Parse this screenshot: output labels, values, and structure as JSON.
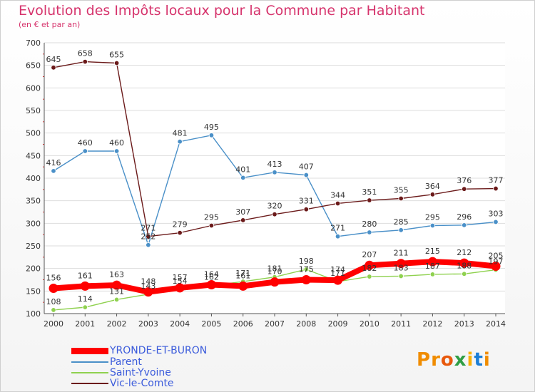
{
  "chart_data": {
    "type": "line",
    "title": "Evolution des Impôts locaux pour la Commune par Habitant",
    "subtitle": "(en € et par an)",
    "xlabel": "",
    "ylabel": "",
    "x": [
      "2000",
      "2001",
      "2002",
      "2003",
      "2004",
      "2005",
      "2006",
      "2007",
      "2008",
      "2009",
      "2010",
      "2011",
      "2012",
      "2013",
      "2014"
    ],
    "ylim": [
      100,
      700
    ],
    "yticks": [
      "100",
      "150",
      "200",
      "250",
      "300",
      "350",
      "400",
      "450",
      "500",
      "550",
      "600",
      "650",
      "700"
    ],
    "grid": "horizontal",
    "legend_placement": "bottom-left",
    "series": [
      {
        "name": "YRONDE-ET-BURON",
        "color": "#ff0000",
        "values": [
          156,
          161,
          163,
          148,
          157,
          164,
          161,
          170,
          175,
          174,
          207,
          211,
          215,
          212,
          205
        ]
      },
      {
        "name": "Parent",
        "color": "#4a90c8",
        "values": [
          416,
          460,
          460,
          252,
          481,
          495,
          401,
          413,
          407,
          271,
          280,
          285,
          295,
          296,
          303
        ]
      },
      {
        "name": "Saint-Yvoine",
        "color": "#8fd14f",
        "values": [
          108,
          114,
          131,
          143,
          154,
          162,
          171,
          181,
          198,
          171,
          182,
          183,
          187,
          188,
          197
        ]
      },
      {
        "name": "Vic-le-Comte",
        "color": "#6b1a1a",
        "values": [
          645,
          658,
          655,
          271,
          279,
          295,
          307,
          320,
          331,
          344,
          351,
          355,
          364,
          376,
          377
        ]
      }
    ]
  },
  "logo": {
    "text": "Proxiti",
    "letter_colors": [
      "#f08c00",
      "#f08c00",
      "#e8590c",
      "#2f9e44",
      "#fab005",
      "#1c7ed6",
      "#f08c00"
    ]
  }
}
